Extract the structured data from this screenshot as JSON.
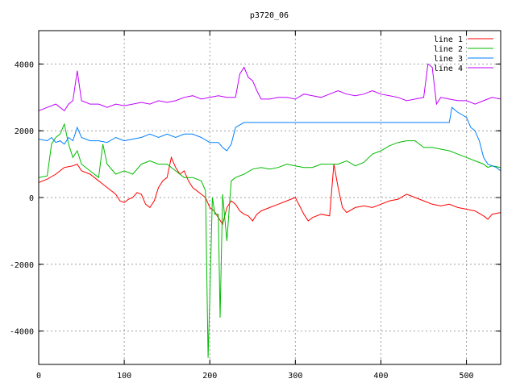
{
  "chart_data": {
    "type": "line",
    "title": "p3720_06",
    "xlabel": "",
    "ylabel": "",
    "xlim": [
      0,
      540
    ],
    "ylim": [
      -5000,
      5000
    ],
    "xticks": [
      0,
      100,
      200,
      300,
      400,
      500
    ],
    "yticks": [
      -4000,
      -2000,
      0,
      2000,
      4000
    ],
    "grid": true,
    "legend_position": "top-right",
    "series": [
      {
        "name": "line 1",
        "color": "#ff0000",
        "points": [
          [
            0,
            450
          ],
          [
            10,
            550
          ],
          [
            20,
            700
          ],
          [
            30,
            900
          ],
          [
            40,
            950
          ],
          [
            45,
            1000
          ],
          [
            50,
            800
          ],
          [
            60,
            700
          ],
          [
            70,
            500
          ],
          [
            80,
            300
          ],
          [
            90,
            100
          ],
          [
            95,
            -100
          ],
          [
            100,
            -150
          ],
          [
            105,
            -50
          ],
          [
            110,
            0
          ],
          [
            115,
            150
          ],
          [
            120,
            100
          ],
          [
            125,
            -200
          ],
          [
            130,
            -300
          ],
          [
            135,
            -100
          ],
          [
            140,
            300
          ],
          [
            145,
            500
          ],
          [
            150,
            600
          ],
          [
            155,
            1200
          ],
          [
            160,
            900
          ],
          [
            165,
            700
          ],
          [
            170,
            800
          ],
          [
            175,
            500
          ],
          [
            180,
            300
          ],
          [
            185,
            200
          ],
          [
            190,
            100
          ],
          [
            195,
            0
          ],
          [
            200,
            -300
          ],
          [
            205,
            -400
          ],
          [
            210,
            -600
          ],
          [
            215,
            -800
          ],
          [
            220,
            -300
          ],
          [
            225,
            -100
          ],
          [
            230,
            -200
          ],
          [
            235,
            -400
          ],
          [
            240,
            -500
          ],
          [
            245,
            -550
          ],
          [
            250,
            -700
          ],
          [
            255,
            -500
          ],
          [
            260,
            -400
          ],
          [
            270,
            -300
          ],
          [
            280,
            -200
          ],
          [
            290,
            -100
          ],
          [
            300,
            0
          ],
          [
            310,
            -500
          ],
          [
            315,
            -700
          ],
          [
            320,
            -600
          ],
          [
            330,
            -500
          ],
          [
            340,
            -550
          ],
          [
            345,
            1000
          ],
          [
            350,
            300
          ],
          [
            355,
            -300
          ],
          [
            360,
            -450
          ],
          [
            370,
            -300
          ],
          [
            380,
            -250
          ],
          [
            390,
            -300
          ],
          [
            400,
            -200
          ],
          [
            410,
            -100
          ],
          [
            420,
            -50
          ],
          [
            430,
            100
          ],
          [
            440,
            0
          ],
          [
            450,
            -100
          ],
          [
            460,
            -200
          ],
          [
            470,
            -250
          ],
          [
            480,
            -200
          ],
          [
            490,
            -300
          ],
          [
            500,
            -350
          ],
          [
            510,
            -400
          ],
          [
            520,
            -550
          ],
          [
            525,
            -650
          ],
          [
            530,
            -500
          ],
          [
            540,
            -450
          ]
        ]
      },
      {
        "name": "line 2",
        "color": "#00bb00",
        "points": [
          [
            0,
            600
          ],
          [
            10,
            650
          ],
          [
            15,
            1600
          ],
          [
            20,
            1800
          ],
          [
            25,
            1900
          ],
          [
            30,
            2200
          ],
          [
            35,
            1600
          ],
          [
            40,
            1200
          ],
          [
            45,
            1400
          ],
          [
            50,
            1000
          ],
          [
            60,
            800
          ],
          [
            70,
            600
          ],
          [
            75,
            1600
          ],
          [
            80,
            1000
          ],
          [
            90,
            700
          ],
          [
            100,
            800
          ],
          [
            110,
            700
          ],
          [
            120,
            1000
          ],
          [
            130,
            1100
          ],
          [
            140,
            1000
          ],
          [
            150,
            1000
          ],
          [
            160,
            800
          ],
          [
            170,
            600
          ],
          [
            180,
            600
          ],
          [
            190,
            500
          ],
          [
            195,
            200
          ],
          [
            198,
            -4800
          ],
          [
            200,
            -3000
          ],
          [
            203,
            0
          ],
          [
            206,
            -500
          ],
          [
            210,
            -500
          ],
          [
            212,
            -3600
          ],
          [
            215,
            100
          ],
          [
            220,
            -1300
          ],
          [
            225,
            500
          ],
          [
            230,
            600
          ],
          [
            240,
            700
          ],
          [
            250,
            850
          ],
          [
            260,
            900
          ],
          [
            270,
            850
          ],
          [
            280,
            900
          ],
          [
            290,
            1000
          ],
          [
            300,
            950
          ],
          [
            310,
            900
          ],
          [
            320,
            900
          ],
          [
            330,
            1000
          ],
          [
            340,
            1000
          ],
          [
            350,
            1000
          ],
          [
            360,
            1100
          ],
          [
            370,
            950
          ],
          [
            380,
            1050
          ],
          [
            390,
            1300
          ],
          [
            400,
            1400
          ],
          [
            410,
            1550
          ],
          [
            420,
            1650
          ],
          [
            430,
            1700
          ],
          [
            440,
            1700
          ],
          [
            450,
            1500
          ],
          [
            460,
            1500
          ],
          [
            470,
            1450
          ],
          [
            480,
            1400
          ],
          [
            490,
            1300
          ],
          [
            500,
            1200
          ],
          [
            510,
            1100
          ],
          [
            515,
            1050
          ],
          [
            520,
            1000
          ],
          [
            525,
            900
          ],
          [
            530,
            950
          ],
          [
            540,
            900
          ]
        ]
      },
      {
        "name": "line 3",
        "color": "#0080ff",
        "points": [
          [
            0,
            1750
          ],
          [
            10,
            1700
          ],
          [
            15,
            1800
          ],
          [
            20,
            1650
          ],
          [
            25,
            1700
          ],
          [
            30,
            1600
          ],
          [
            35,
            1800
          ],
          [
            40,
            1700
          ],
          [
            45,
            2100
          ],
          [
            50,
            1800
          ],
          [
            60,
            1700
          ],
          [
            70,
            1700
          ],
          [
            80,
            1650
          ],
          [
            90,
            1800
          ],
          [
            100,
            1700
          ],
          [
            110,
            1750
          ],
          [
            120,
            1800
          ],
          [
            130,
            1900
          ],
          [
            140,
            1800
          ],
          [
            150,
            1900
          ],
          [
            160,
            1800
          ],
          [
            170,
            1900
          ],
          [
            180,
            1900
          ],
          [
            190,
            1800
          ],
          [
            200,
            1650
          ],
          [
            210,
            1650
          ],
          [
            215,
            1500
          ],
          [
            220,
            1400
          ],
          [
            225,
            1600
          ],
          [
            230,
            2100
          ],
          [
            240,
            2250
          ],
          [
            250,
            2250
          ],
          [
            300,
            2250
          ],
          [
            350,
            2250
          ],
          [
            400,
            2250
          ],
          [
            450,
            2250
          ],
          [
            480,
            2250
          ],
          [
            483,
            2700
          ],
          [
            490,
            2550
          ],
          [
            500,
            2400
          ],
          [
            505,
            2100
          ],
          [
            510,
            2000
          ],
          [
            515,
            1700
          ],
          [
            520,
            1200
          ],
          [
            525,
            1000
          ],
          [
            530,
            950
          ],
          [
            535,
            900
          ],
          [
            540,
            800
          ]
        ]
      },
      {
        "name": "line 4",
        "color": "#c000ff",
        "points": [
          [
            0,
            2600
          ],
          [
            10,
            2700
          ],
          [
            20,
            2800
          ],
          [
            25,
            2700
          ],
          [
            30,
            2600
          ],
          [
            35,
            2800
          ],
          [
            40,
            2900
          ],
          [
            45,
            3800
          ],
          [
            50,
            2900
          ],
          [
            60,
            2800
          ],
          [
            70,
            2800
          ],
          [
            80,
            2700
          ],
          [
            90,
            2800
          ],
          [
            100,
            2750
          ],
          [
            110,
            2800
          ],
          [
            120,
            2850
          ],
          [
            130,
            2800
          ],
          [
            140,
            2900
          ],
          [
            150,
            2850
          ],
          [
            160,
            2900
          ],
          [
            170,
            3000
          ],
          [
            180,
            3050
          ],
          [
            190,
            2950
          ],
          [
            200,
            3000
          ],
          [
            210,
            3050
          ],
          [
            220,
            3000
          ],
          [
            230,
            3000
          ],
          [
            235,
            3700
          ],
          [
            240,
            3900
          ],
          [
            245,
            3600
          ],
          [
            250,
            3500
          ],
          [
            255,
            3200
          ],
          [
            260,
            2950
          ],
          [
            270,
            2950
          ],
          [
            280,
            3000
          ],
          [
            290,
            3000
          ],
          [
            300,
            2950
          ],
          [
            310,
            3100
          ],
          [
            320,
            3050
          ],
          [
            330,
            3000
          ],
          [
            340,
            3100
          ],
          [
            350,
            3200
          ],
          [
            360,
            3100
          ],
          [
            370,
            3050
          ],
          [
            380,
            3100
          ],
          [
            390,
            3200
          ],
          [
            400,
            3100
          ],
          [
            410,
            3050
          ],
          [
            420,
            3000
          ],
          [
            430,
            2900
          ],
          [
            440,
            2950
          ],
          [
            450,
            3000
          ],
          [
            455,
            4000
          ],
          [
            460,
            3900
          ],
          [
            465,
            2800
          ],
          [
            470,
            3000
          ],
          [
            480,
            2950
          ],
          [
            490,
            2900
          ],
          [
            500,
            2900
          ],
          [
            510,
            2800
          ],
          [
            520,
            2900
          ],
          [
            530,
            3000
          ],
          [
            540,
            2950
          ]
        ]
      }
    ]
  }
}
